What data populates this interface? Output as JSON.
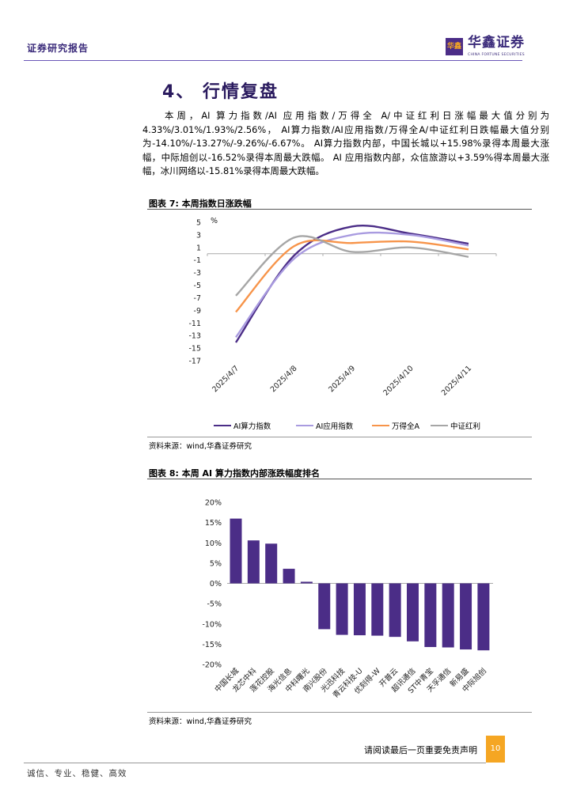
{
  "header": {
    "report_type": "证券研究报告",
    "logo_cn": "华鑫证券",
    "logo_en": "CHINA FORTUNE SECURITIES",
    "logo_mark": "华鑫"
  },
  "section": {
    "title": "4、 行情复盘"
  },
  "paragraph": "本周，AI 算力指数/AI 应用指数/万得全 A/中证红利日涨幅最大值分别为4.33%/3.01%/1.93%/2.56%， AI算力指数/AI应用指数/万得全A/中证红利日跌幅最大值分别为-14.10%/-13.27%/-9.26%/-6.67%。 AI算力指数内部，中国长城以+15.98%录得本周最大涨幅，中际旭创以-16.52%录得本周最大跌幅。 AI 应用指数内部，众信旅游以+3.59%得本周最大涨幅，冰川网络以-15.81%录得本周最大跌幅。",
  "figure7": {
    "title": "图表 7: 本周指数日涨跌幅",
    "source": "资料来源：wind,华鑫证券研究"
  },
  "figure8": {
    "title": "图表 8: 本周 AI 算力指数内部涨跌幅度排名",
    "source": "资料来源：wind,华鑫证券研究"
  },
  "chart_data": [
    {
      "type": "line",
      "ylabel": "%",
      "x": [
        "2025/4/7",
        "2025/4/8",
        "2025/4/9",
        "2025/4/10",
        "2025/4/11"
      ],
      "yticks": [
        5,
        3,
        1,
        -1,
        -3,
        -5,
        -7,
        -9,
        -11,
        -13,
        -15,
        -17
      ],
      "ylim": [
        -17,
        5
      ],
      "legend": "bottom",
      "smooth": true,
      "series": [
        {
          "name": "AI算力指数",
          "color": "#4b2d87",
          "values": [
            -14.1,
            -0.3,
            4.33,
            3.2,
            1.6
          ]
        },
        {
          "name": "AI应用指数",
          "color": "#a99be0",
          "values": [
            -13.27,
            -0.8,
            3.01,
            3.0,
            1.3
          ]
        },
        {
          "name": "万得全A",
          "color": "#f7944a",
          "values": [
            -9.26,
            1.2,
            1.7,
            1.93,
            0.7
          ]
        },
        {
          "name": "中证红利",
          "color": "#a6a6a6",
          "values": [
            -6.67,
            2.56,
            0.3,
            1.0,
            -0.5
          ]
        }
      ]
    },
    {
      "type": "bar",
      "color": "#4b2d87",
      "categories": [
        "中国长城",
        "龙芯中科",
        "莲花控股",
        "海光信息",
        "中科曙光",
        "南兴股份",
        "光迅科技",
        "青云科技-U",
        "优刻得-W",
        "开普云",
        "超讯通信",
        "ST中青宝",
        "天孚通信",
        "新易盛",
        "中际旭创"
      ],
      "values": [
        15.98,
        10.6,
        9.8,
        3.6,
        0.4,
        -11.3,
        -12.7,
        -12.8,
        -12.9,
        -13.2,
        -14.3,
        -15.7,
        -15.8,
        -16.3,
        -16.52
      ],
      "yticks": [
        "20%",
        "15%",
        "10%",
        "5%",
        "0%",
        "-5%",
        "-10%",
        "-15%",
        "-20%"
      ],
      "ylim": [
        -20,
        20
      ]
    }
  ],
  "footer": {
    "disclaimer": "请阅读最后一页重要免责声明",
    "page": "10",
    "motto": "诚信、专业、稳健、高效"
  }
}
